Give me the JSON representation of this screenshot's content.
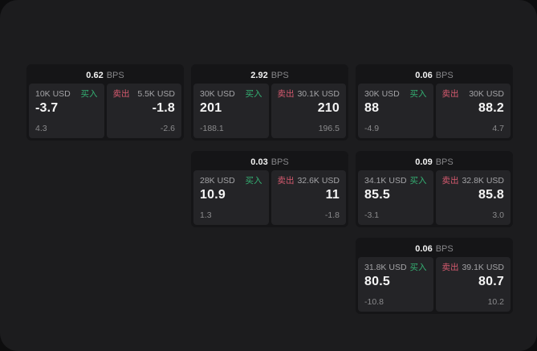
{
  "unit_label": "BPS",
  "colors": {
    "accent_green": "#34b073",
    "accent_red": "#d65a6f",
    "window_bg": "#1c1c1e",
    "card_bg": "#151517",
    "panel_bg": "#242427"
  },
  "cards": [
    {
      "bps": "0.62",
      "buy": {
        "amount": "10K USD",
        "side": "买入",
        "value": "-3.7",
        "sub": "4.3"
      },
      "sell": {
        "side": "卖出",
        "amount": "5.5K USD",
        "value": "-1.8",
        "sub": "-2.6"
      }
    },
    {
      "bps": "2.92",
      "buy": {
        "amount": "30K USD",
        "side": "买入",
        "value": "201",
        "sub": "-188.1"
      },
      "sell": {
        "side": "卖出",
        "amount": "30.1K USD",
        "value": "210",
        "sub": "196.5"
      }
    },
    {
      "bps": "0.06",
      "buy": {
        "amount": "30K USD",
        "side": "买入",
        "value": "88",
        "sub": "-4.9"
      },
      "sell": {
        "side": "卖出",
        "amount": "30K USD",
        "value": "88.2",
        "sub": "4.7"
      }
    },
    {
      "bps": "0.03",
      "buy": {
        "amount": "28K USD",
        "side": "买入",
        "value": "10.9",
        "sub": "1.3"
      },
      "sell": {
        "side": "卖出",
        "amount": "32.6K USD",
        "value": "11",
        "sub": "-1.8"
      }
    },
    {
      "bps": "0.09",
      "buy": {
        "amount": "34.1K USD",
        "side": "买入",
        "value": "85.5",
        "sub": "-3.1"
      },
      "sell": {
        "side": "卖出",
        "amount": "32.8K USD",
        "value": "85.8",
        "sub": "3.0"
      }
    },
    {
      "bps": "0.06",
      "buy": {
        "amount": "31.8K USD",
        "side": "买入",
        "value": "80.5",
        "sub": "-10.8"
      },
      "sell": {
        "side": "卖出",
        "amount": "39.1K USD",
        "value": "80.7",
        "sub": "10.2"
      }
    }
  ]
}
